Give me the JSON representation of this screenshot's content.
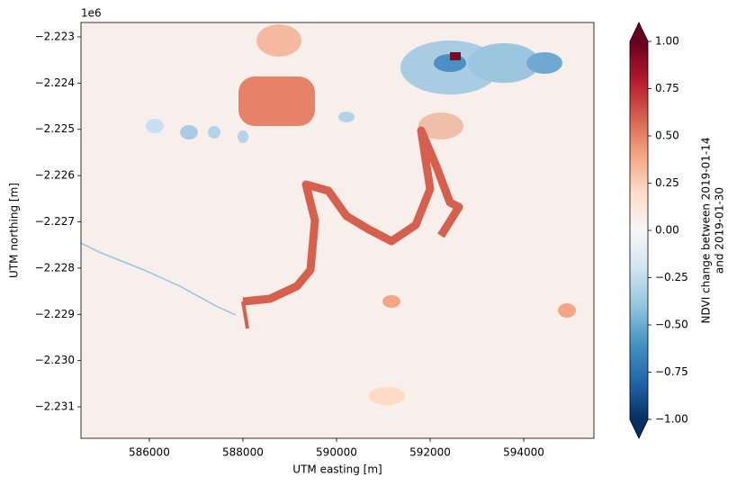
{
  "chart_data": {
    "type": "raster",
    "x_label": "UTM easting [m]",
    "y_label": "UTM northing [m]",
    "y_offset_label": "1e6",
    "xlim": [
      584540,
      595500
    ],
    "ylim": [
      -2231680,
      -2222690
    ],
    "xticks": [
      586000,
      588000,
      590000,
      592000,
      594000
    ],
    "yticks": [
      {
        "value": -2223000,
        "label": "−2.223"
      },
      {
        "value": -2224000,
        "label": "−2.224"
      },
      {
        "value": -2225000,
        "label": "−2.225"
      },
      {
        "value": -2226000,
        "label": "−2.226"
      },
      {
        "value": -2227000,
        "label": "−2.227"
      },
      {
        "value": -2228000,
        "label": "−2.228"
      },
      {
        "value": -2229000,
        "label": "−2.229"
      },
      {
        "value": -2230000,
        "label": "−2.230"
      },
      {
        "value": -2231000,
        "label": "−2.231"
      }
    ],
    "colorbar": {
      "label_lines": [
        "NDVI change between 2019-01-14",
        "and 2019-01-30"
      ],
      "lim": [
        -1,
        1
      ],
      "ticks": [
        {
          "value": 1,
          "label": "1.00"
        },
        {
          "value": 0.75,
          "label": "0.75"
        },
        {
          "value": 0.5,
          "label": "0.50"
        },
        {
          "value": 0.25,
          "label": "0.25"
        },
        {
          "value": 0,
          "label": "0.00"
        },
        {
          "value": -0.25,
          "label": "−0.25"
        },
        {
          "value": -0.5,
          "label": "−0.50"
        },
        {
          "value": -0.75,
          "label": "−0.75"
        },
        {
          "value": -1,
          "label": "−1.00"
        }
      ],
      "colormap_colors": [
        "#053061",
        "#2166ac",
        "#4393c3",
        "#92c5de",
        "#d1e5f0",
        "#f7f7f7",
        "#fddbc7",
        "#f4a582",
        "#d6604d",
        "#b2182b",
        "#67001f"
      ]
    }
  }
}
